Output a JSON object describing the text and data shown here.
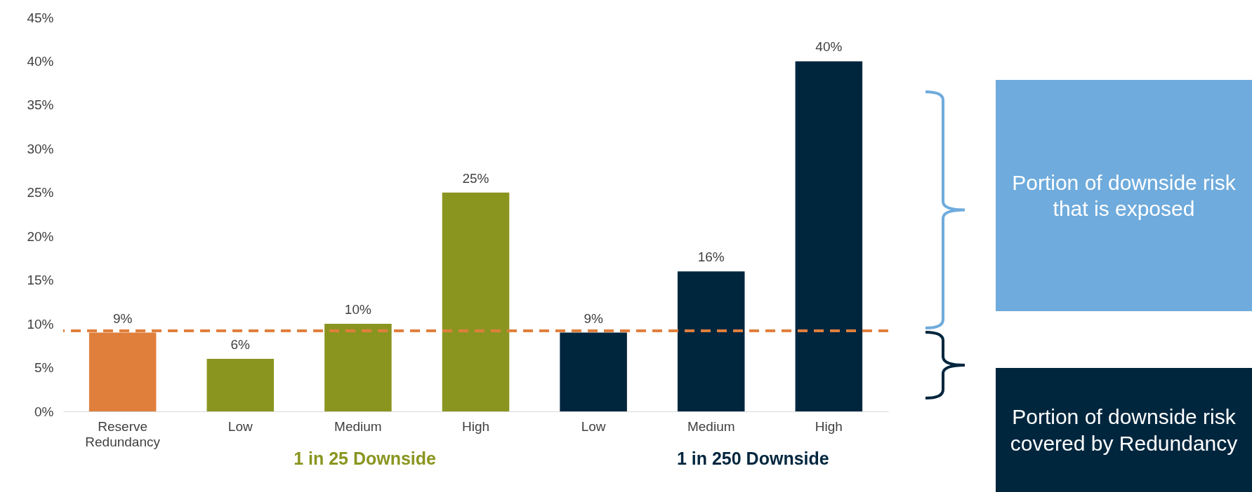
{
  "chart_data": {
    "type": "bar",
    "categories": [
      "Reserve Redundancy",
      "Low",
      "Medium",
      "High",
      "Low",
      "Medium",
      "High"
    ],
    "values": [
      9,
      6,
      10,
      25,
      9,
      16,
      40
    ],
    "colors": [
      "#e07f3c",
      "#8a9520",
      "#8a9520",
      "#8a9520",
      "#00263e",
      "#00263e",
      "#00263e"
    ],
    "value_labels": [
      "9%",
      "6%",
      "10%",
      "25%",
      "9%",
      "16%",
      "40%"
    ],
    "ylim": [
      0,
      45
    ],
    "yticks": [
      {
        "value": 0,
        "label": "0%"
      },
      {
        "value": 5,
        "label": "5%"
      },
      {
        "value": 10,
        "label": "10%"
      },
      {
        "value": 15,
        "label": "15%"
      },
      {
        "value": 20,
        "label": "20%"
      },
      {
        "value": 25,
        "label": "25%"
      },
      {
        "value": 30,
        "label": "30%"
      },
      {
        "value": 35,
        "label": "35%"
      },
      {
        "value": 40,
        "label": "40%"
      },
      {
        "value": 45,
        "label": "45%"
      }
    ],
    "grid": false,
    "ref_lines": [
      {
        "axis": "y",
        "value": 9.2,
        "color": "#e07f3c",
        "line_style": "dashed"
      }
    ],
    "annotations": [
      "1 in 25 Downside",
      "1 in 250 Downside",
      "Portion of downside risk that is exposed",
      "Portion of downside risk covered by Redundancy"
    ]
  }
}
